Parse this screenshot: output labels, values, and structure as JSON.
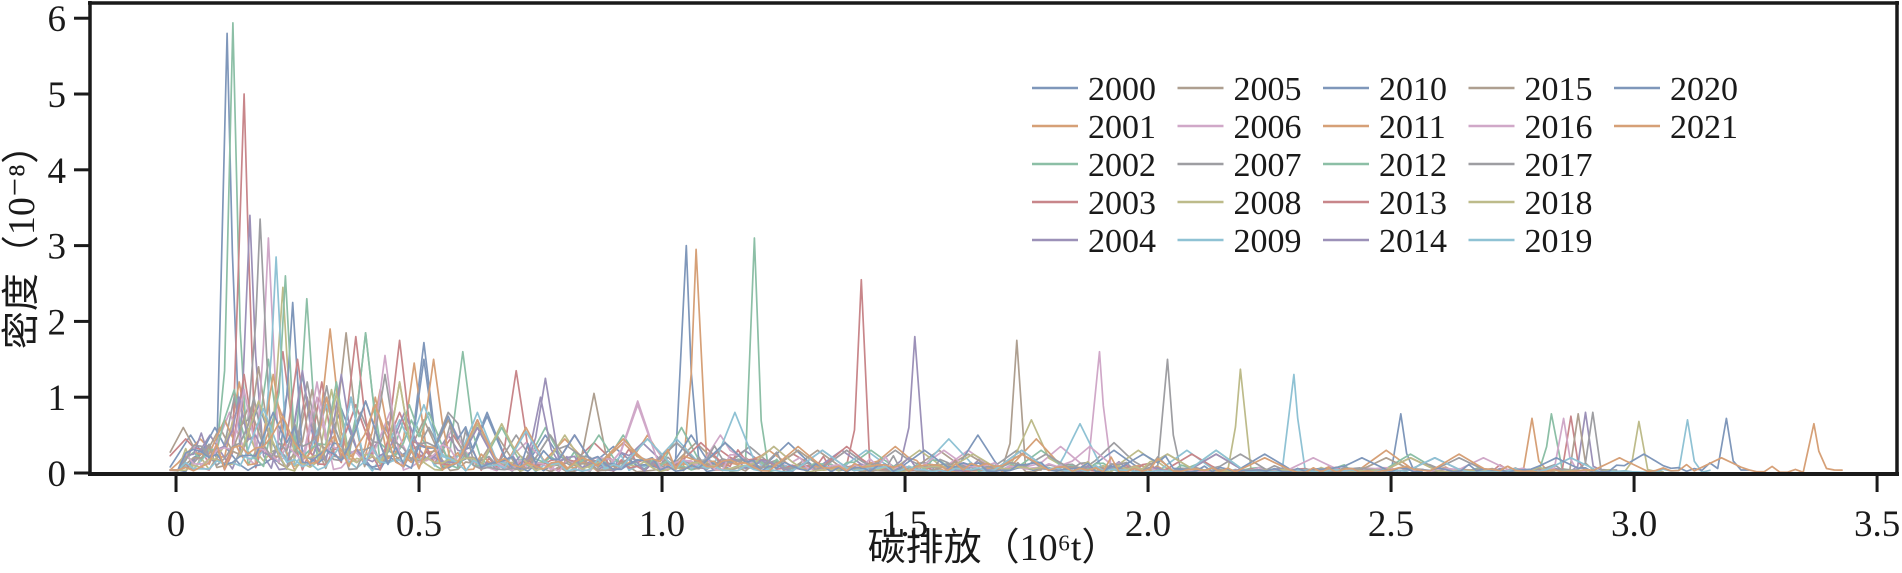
{
  "figure": {
    "background": "#ffffff",
    "axis_color": "#1a1a1a"
  },
  "chart_data": {
    "type": "line",
    "subtype": "kde-density-curves",
    "title": "",
    "xlabel": "碳排放（10⁶t）",
    "ylabel": "密度（10⁻⁸）",
    "xlim": [
      -0.177,
      3.541
    ],
    "ylim": [
      0,
      6.214
    ],
    "grid": false,
    "xticks": [
      {
        "value": 0,
        "label": "0"
      },
      {
        "value": 0.5,
        "label": "0.5"
      },
      {
        "value": 1.0,
        "label": "1.0"
      },
      {
        "value": 1.5,
        "label": "1.5"
      },
      {
        "value": 2.0,
        "label": "2.0"
      },
      {
        "value": 2.5,
        "label": "2.5"
      },
      {
        "value": 3.0,
        "label": "3.0"
      },
      {
        "value": 3.5,
        "label": "3.5"
      }
    ],
    "yticks": [
      {
        "value": 0,
        "label": "0"
      },
      {
        "value": 1,
        "label": "1"
      },
      {
        "value": 2,
        "label": "2"
      },
      {
        "value": 3,
        "label": "3"
      },
      {
        "value": 4,
        "label": "4"
      },
      {
        "value": 5,
        "label": "5"
      },
      {
        "value": 6,
        "label": "6"
      }
    ],
    "legend": {
      "columns": 5,
      "rows": 5,
      "order": "column-major",
      "position": "upper-center-right"
    },
    "series": [
      {
        "name": "2000",
        "color": "#7f97ba",
        "seed": 11,
        "peaks": [
          [
            0.03,
            0.5
          ],
          [
            0.105,
            5.8
          ],
          [
            0.17,
            0.9
          ],
          [
            0.26,
            1.3
          ],
          [
            0.34,
            0.85
          ],
          [
            0.51,
            1.72
          ],
          [
            0.64,
            0.8
          ],
          [
            0.76,
            0.5
          ],
          [
            0.9,
            0.35
          ],
          [
            1.05,
            3.0
          ]
        ]
      },
      {
        "name": "2001",
        "color": "#d6a077",
        "seed": 22,
        "peaks": [
          [
            0.05,
            0.45
          ],
          [
            0.13,
            1.2
          ],
          [
            0.21,
            0.9
          ],
          [
            0.317,
            1.9
          ],
          [
            0.41,
            1.0
          ],
          [
            0.49,
            1.45
          ],
          [
            0.62,
            0.6
          ],
          [
            0.8,
            0.45
          ],
          [
            0.97,
            0.5
          ],
          [
            1.07,
            2.95
          ]
        ]
      },
      {
        "name": "2002",
        "color": "#8cbfa6",
        "seed": 33,
        "peaks": [
          [
            0.117,
            5.94
          ],
          [
            0.19,
            1.5
          ],
          [
            0.269,
            2.3
          ],
          [
            0.39,
            1.85
          ],
          [
            0.48,
            0.9
          ],
          [
            0.59,
            1.6
          ],
          [
            0.76,
            0.6
          ],
          [
            0.92,
            0.5
          ],
          [
            1.04,
            0.6
          ],
          [
            1.19,
            3.1
          ]
        ]
      },
      {
        "name": "2003",
        "color": "#c8868a",
        "seed": 44,
        "peaks": [
          [
            0.02,
            0.45
          ],
          [
            0.14,
            5.0
          ],
          [
            0.22,
            1.6
          ],
          [
            0.3,
            1.2
          ],
          [
            0.37,
            0.9
          ],
          [
            0.46,
            0.8
          ],
          [
            0.57,
            0.5
          ],
          [
            0.7,
            1.35
          ],
          [
            0.86,
            0.4
          ],
          [
            1.12,
            0.3
          ],
          [
            1.27,
            0.25
          ],
          [
            1.41,
            2.55
          ]
        ]
      },
      {
        "name": "2004",
        "color": "#9c91b8",
        "seed": 55,
        "peaks": [
          [
            0.07,
            0.5
          ],
          [
            0.152,
            3.4
          ],
          [
            0.23,
            1.1
          ],
          [
            0.31,
            1.0
          ],
          [
            0.43,
            0.6
          ],
          [
            0.56,
            0.5
          ],
          [
            0.75,
            1.0
          ],
          [
            0.96,
            0.4
          ],
          [
            1.17,
            0.3
          ],
          [
            1.37,
            0.3
          ],
          [
            1.52,
            1.8
          ]
        ]
      },
      {
        "name": "2005",
        "color": "#ae9f90",
        "seed": 66,
        "peaks": [
          [
            0.015,
            0.6
          ],
          [
            0.09,
            0.6
          ],
          [
            0.17,
            1.4
          ],
          [
            0.27,
            1.0
          ],
          [
            0.35,
            1.85
          ],
          [
            0.51,
            0.7
          ],
          [
            0.66,
            0.5
          ],
          [
            0.86,
            1.05
          ],
          [
            1.07,
            0.4
          ],
          [
            1.32,
            0.3
          ],
          [
            1.57,
            0.3
          ],
          [
            1.73,
            1.75
          ]
        ]
      },
      {
        "name": "2006",
        "color": "#d0a8c8",
        "seed": 77,
        "peaks": [
          [
            0.11,
            0.8
          ],
          [
            0.19,
            3.1
          ],
          [
            0.29,
            1.0
          ],
          [
            0.44,
            0.8
          ],
          [
            0.57,
            0.6
          ],
          [
            0.72,
            0.4
          ],
          [
            0.95,
            0.95
          ],
          [
            1.12,
            0.5
          ],
          [
            1.38,
            0.3
          ],
          [
            1.63,
            0.3
          ],
          [
            1.82,
            0.35
          ],
          [
            1.9,
            1.6
          ]
        ]
      },
      {
        "name": "2007",
        "color": "#9e9ea2",
        "seed": 88,
        "peaks": [
          [
            0.12,
            1.0
          ],
          [
            0.173,
            3.35
          ],
          [
            0.27,
            1.2
          ],
          [
            0.38,
            0.8
          ],
          [
            0.52,
            0.6
          ],
          [
            0.7,
            0.5
          ],
          [
            0.92,
            0.4
          ],
          [
            1.18,
            0.35
          ],
          [
            1.48,
            0.3
          ],
          [
            1.73,
            0.3
          ],
          [
            1.93,
            0.4
          ],
          [
            2.04,
            1.5
          ]
        ]
      },
      {
        "name": "2008",
        "color": "#bdbb8a",
        "seed": 99,
        "peaks": [
          [
            0.13,
            0.9
          ],
          [
            0.22,
            2.45
          ],
          [
            0.32,
            1.1
          ],
          [
            0.46,
            1.2
          ],
          [
            0.62,
            0.65
          ],
          [
            0.8,
            0.5
          ],
          [
            1.03,
            0.4
          ],
          [
            1.28,
            0.3
          ],
          [
            1.53,
            0.3
          ],
          [
            1.76,
            0.7
          ],
          [
            1.98,
            0.3
          ],
          [
            2.19,
            1.37
          ]
        ]
      },
      {
        "name": "2009",
        "color": "#8fc2d4",
        "seed": 110,
        "peaks": [
          [
            0.1,
            0.7
          ],
          [
            0.206,
            2.85
          ],
          [
            0.31,
            0.9
          ],
          [
            0.46,
            0.7
          ],
          [
            0.62,
            0.8
          ],
          [
            0.82,
            0.5
          ],
          [
            1.03,
            0.45
          ],
          [
            1.15,
            0.8
          ],
          [
            1.42,
            0.3
          ],
          [
            1.59,
            0.45
          ],
          [
            1.86,
            0.65
          ],
          [
            2.08,
            0.3
          ],
          [
            2.3,
            1.3
          ]
        ]
      },
      {
        "name": "2010",
        "color": "#7f97ba",
        "seed": 121,
        "peaks": [
          [
            0.08,
            0.6
          ],
          [
            0.24,
            2.25
          ],
          [
            0.36,
            1.0
          ],
          [
            0.51,
            1.5
          ],
          [
            0.64,
            0.75
          ],
          [
            0.82,
            0.5
          ],
          [
            1.06,
            0.5
          ],
          [
            1.26,
            0.4
          ],
          [
            1.65,
            0.5
          ],
          [
            1.93,
            0.3
          ],
          [
            2.24,
            0.25
          ],
          [
            2.52,
            0.78
          ]
        ]
      },
      {
        "name": "2011",
        "color": "#d6a077",
        "seed": 132,
        "peaks": [
          [
            0.1,
            0.7
          ],
          [
            0.2,
            1.3
          ],
          [
            0.31,
            1.0
          ],
          [
            0.42,
            1.1
          ],
          [
            0.53,
            1.5
          ],
          [
            0.72,
            0.6
          ],
          [
            0.92,
            0.4
          ],
          [
            1.22,
            0.3
          ],
          [
            1.48,
            0.35
          ],
          [
            1.77,
            0.45
          ],
          [
            2.14,
            0.25
          ],
          [
            2.49,
            0.3
          ],
          [
            2.79,
            0.72
          ]
        ]
      },
      {
        "name": "2012",
        "color": "#8cbfa6",
        "seed": 143,
        "peaks": [
          [
            0.12,
            1.1
          ],
          [
            0.225,
            2.6
          ],
          [
            0.33,
            1.2
          ],
          [
            0.39,
            1.85
          ],
          [
            0.52,
            0.8
          ],
          [
            0.67,
            0.6
          ],
          [
            0.87,
            0.5
          ],
          [
            1.13,
            0.4
          ],
          [
            1.43,
            0.3
          ],
          [
            1.78,
            0.3
          ],
          [
            2.14,
            0.3
          ],
          [
            2.54,
            0.25
          ],
          [
            2.83,
            0.78
          ]
        ]
      },
      {
        "name": "2013",
        "color": "#c8868a",
        "seed": 154,
        "peaks": [
          [
            0.14,
            1.3
          ],
          [
            0.25,
            1.5
          ],
          [
            0.37,
            1.8
          ],
          [
            0.46,
            1.75
          ],
          [
            0.62,
            0.7
          ],
          [
            0.82,
            0.5
          ],
          [
            1.08,
            0.4
          ],
          [
            1.38,
            0.35
          ],
          [
            1.74,
            0.3
          ],
          [
            2.09,
            0.25
          ],
          [
            2.54,
            0.2
          ],
          [
            2.87,
            0.75
          ]
        ]
      },
      {
        "name": "2014",
        "color": "#9c91b8",
        "seed": 165,
        "peaks": [
          [
            0.13,
            1.0
          ],
          [
            0.26,
            1.35
          ],
          [
            0.34,
            1.3
          ],
          [
            0.47,
            0.8
          ],
          [
            0.62,
            0.6
          ],
          [
            0.76,
            1.25
          ],
          [
            1.03,
            0.4
          ],
          [
            1.33,
            0.3
          ],
          [
            1.74,
            0.25
          ],
          [
            2.14,
            0.25
          ],
          [
            2.59,
            0.2
          ],
          [
            2.9,
            0.8
          ]
        ]
      },
      {
        "name": "2015",
        "color": "#ae9f90",
        "seed": 176,
        "peaks": [
          [
            0.15,
            0.9
          ],
          [
            0.28,
            1.1
          ],
          [
            0.39,
            0.95
          ],
          [
            0.56,
            0.7
          ],
          [
            0.77,
            0.5
          ],
          [
            0.97,
            0.45
          ],
          [
            1.28,
            0.3
          ],
          [
            1.63,
            0.25
          ],
          [
            2.04,
            0.25
          ],
          [
            2.49,
            0.2
          ],
          [
            2.885,
            0.78
          ]
        ]
      },
      {
        "name": "2016",
        "color": "#d0a8c8",
        "seed": 187,
        "peaks": [
          [
            0.14,
            1.1
          ],
          [
            0.29,
            1.2
          ],
          [
            0.43,
            1.55
          ],
          [
            0.62,
            0.7
          ],
          [
            0.82,
            0.5
          ],
          [
            0.95,
            0.9
          ],
          [
            1.23,
            0.35
          ],
          [
            1.58,
            0.3
          ],
          [
            1.88,
            0.35
          ],
          [
            2.34,
            0.2
          ],
          [
            2.69,
            0.2
          ],
          [
            2.855,
            0.72
          ]
        ]
      },
      {
        "name": "2017",
        "color": "#9e9ea2",
        "seed": 198,
        "peaks": [
          [
            0.16,
            1.0
          ],
          [
            0.31,
            1.15
          ],
          [
            0.43,
            1.3
          ],
          [
            0.56,
            0.8
          ],
          [
            0.77,
            0.5
          ],
          [
            1.03,
            0.4
          ],
          [
            1.38,
            0.3
          ],
          [
            1.79,
            0.25
          ],
          [
            2.19,
            0.25
          ],
          [
            2.64,
            0.2
          ],
          [
            2.915,
            0.8
          ]
        ]
      },
      {
        "name": "2018",
        "color": "#bdbb8a",
        "seed": 209,
        "peaks": [
          [
            0.17,
            0.95
          ],
          [
            0.33,
            1.05
          ],
          [
            0.46,
            1.2
          ],
          [
            0.67,
            0.65
          ],
          [
            0.92,
            0.45
          ],
          [
            1.23,
            0.35
          ],
          [
            1.64,
            0.25
          ],
          [
            2.04,
            0.25
          ],
          [
            2.54,
            0.2
          ],
          [
            3.01,
            0.68
          ]
        ]
      },
      {
        "name": "2019",
        "color": "#8fc2d4",
        "seed": 220,
        "peaks": [
          [
            0.18,
            0.85
          ],
          [
            0.36,
            1.0
          ],
          [
            0.51,
            0.9
          ],
          [
            0.72,
            0.55
          ],
          [
            0.97,
            0.45
          ],
          [
            1.33,
            0.3
          ],
          [
            1.74,
            0.3
          ],
          [
            2.14,
            0.3
          ],
          [
            2.59,
            0.2
          ],
          [
            2.87,
            0.2
          ],
          [
            3.11,
            0.7
          ]
        ]
      },
      {
        "name": "2020",
        "color": "#7f97ba",
        "seed": 231,
        "peaks": [
          [
            0.2,
            0.8
          ],
          [
            0.39,
            0.95
          ],
          [
            0.56,
            0.75
          ],
          [
            0.82,
            0.5
          ],
          [
            1.13,
            0.4
          ],
          [
            1.54,
            0.3
          ],
          [
            1.99,
            0.25
          ],
          [
            2.44,
            0.2
          ],
          [
            2.84,
            0.2
          ],
          [
            3.02,
            0.25
          ],
          [
            3.19,
            0.72
          ]
        ]
      },
      {
        "name": "2021",
        "color": "#d6a077",
        "seed": 242,
        "peaks": [
          [
            0.22,
            0.75
          ],
          [
            0.41,
            0.9
          ],
          [
            0.62,
            0.7
          ],
          [
            0.92,
            0.45
          ],
          [
            1.28,
            0.35
          ],
          [
            1.74,
            0.25
          ],
          [
            2.24,
            0.2
          ],
          [
            2.64,
            0.25
          ],
          [
            2.97,
            0.2
          ],
          [
            3.18,
            0.2
          ],
          [
            3.37,
            0.65
          ]
        ]
      }
    ]
  }
}
